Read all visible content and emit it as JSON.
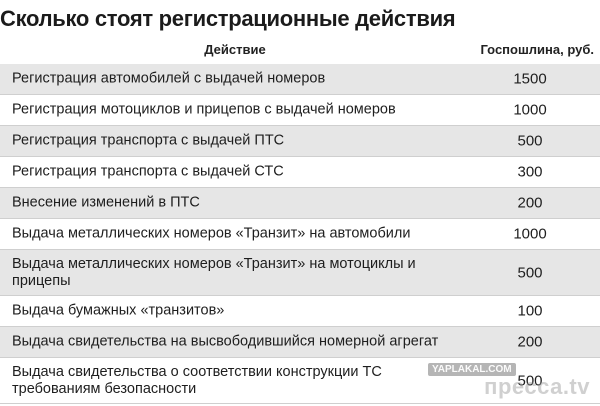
{
  "title": "Сколько стоят регистрационные действия",
  "table": {
    "headers": {
      "action": "Действие",
      "fee": "Госпошлина, руб."
    },
    "rows": [
      {
        "action": "Регистрация автомобилей с выдачей номеров",
        "fee": "1500"
      },
      {
        "action": "Регистрация мотоциклов и прицепов с выдачей номеров",
        "fee": "1000"
      },
      {
        "action": "Регистрация транспорта с выдачей ПТС",
        "fee": "500"
      },
      {
        "action": "Регистрация транспорта с выдачей СТС",
        "fee": "300"
      },
      {
        "action": "Внесение изменений в ПТС",
        "fee": "200"
      },
      {
        "action": "Выдача металлических номеров «Транзит» на автомобили",
        "fee": "1000"
      },
      {
        "action": "Выдача металлических номеров «Транзит» на мотоциклы и прицепы",
        "fee": "500"
      },
      {
        "action": "Выдача бумажных «транзитов»",
        "fee": "100"
      },
      {
        "action": "Выдача свидетельства на высвободившийся номерной агрегат",
        "fee": "200"
      },
      {
        "action": "Выдача свидетельства о соответствии конструкции ТС требованиям безопасности",
        "fee": "500"
      }
    ]
  },
  "watermark": {
    "site": "YAPLAKAL.COM",
    "domain": "пресса.tv"
  }
}
